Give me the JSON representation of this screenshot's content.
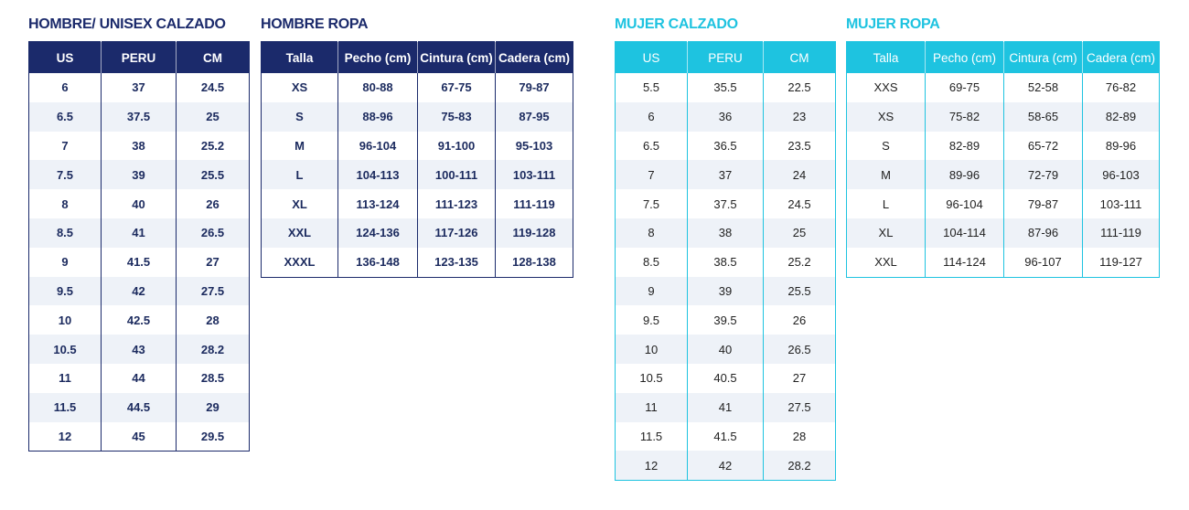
{
  "colors": {
    "navy": "#1b2a6b",
    "cyan": "#1ec3e0",
    "row_alt": "#eef2f8"
  },
  "tables": [
    {
      "title": "HOMBRE/ UNISEX CALZADO",
      "headers": [
        "US",
        "PERU",
        "CM"
      ],
      "rows": [
        [
          "6",
          "37",
          "24.5"
        ],
        [
          "6.5",
          "37.5",
          "25"
        ],
        [
          "7",
          "38",
          "25.2"
        ],
        [
          "7.5",
          "39",
          "25.5"
        ],
        [
          "8",
          "40",
          "26"
        ],
        [
          "8.5",
          "41",
          "26.5"
        ],
        [
          "9",
          "41.5",
          "27"
        ],
        [
          "9.5",
          "42",
          "27.5"
        ],
        [
          "10",
          "42.5",
          "28"
        ],
        [
          "10.5",
          "43",
          "28.2"
        ],
        [
          "11",
          "44",
          "28.5"
        ],
        [
          "11.5",
          "44.5",
          "29"
        ],
        [
          "12",
          "45",
          "29.5"
        ]
      ]
    },
    {
      "title": "HOMBRE ROPA",
      "headers": [
        "Talla",
        "Pecho (cm)",
        "Cintura (cm)",
        "Cadera (cm)"
      ],
      "rows": [
        [
          "XS",
          "80-88",
          "67-75",
          "79-87"
        ],
        [
          "S",
          "88-96",
          "75-83",
          "87-95"
        ],
        [
          "M",
          "96-104",
          "91-100",
          "95-103"
        ],
        [
          "L",
          "104-113",
          "100-111",
          "103-111"
        ],
        [
          "XL",
          "113-124",
          "111-123",
          "111-119"
        ],
        [
          "XXL",
          "124-136",
          "117-126",
          "119-128"
        ],
        [
          "XXXL",
          "136-148",
          "123-135",
          "128-138"
        ]
      ]
    },
    {
      "title": "MUJER CALZADO",
      "headers": [
        "US",
        "PERU",
        "CM"
      ],
      "rows": [
        [
          "5.5",
          "35.5",
          "22.5"
        ],
        [
          "6",
          "36",
          "23"
        ],
        [
          "6.5",
          "36.5",
          "23.5"
        ],
        [
          "7",
          "37",
          "24"
        ],
        [
          "7.5",
          "37.5",
          "24.5"
        ],
        [
          "8",
          "38",
          "25"
        ],
        [
          "8.5",
          "38.5",
          "25.2"
        ],
        [
          "9",
          "39",
          "25.5"
        ],
        [
          "9.5",
          "39.5",
          "26"
        ],
        [
          "10",
          "40",
          "26.5"
        ],
        [
          "10.5",
          "40.5",
          "27"
        ],
        [
          "11",
          "41",
          "27.5"
        ],
        [
          "11.5",
          "41.5",
          "28"
        ],
        [
          "12",
          "42",
          "28.2"
        ]
      ]
    },
    {
      "title": "MUJER ROPA",
      "headers": [
        "Talla",
        "Pecho (cm)",
        "Cintura (cm)",
        "Cadera (cm)"
      ],
      "rows": [
        [
          "XXS",
          "69-75",
          "52-58",
          "76-82"
        ],
        [
          "XS",
          "75-82",
          "58-65",
          "82-89"
        ],
        [
          "S",
          "82-89",
          "65-72",
          "89-96"
        ],
        [
          "M",
          "89-96",
          "72-79",
          "96-103"
        ],
        [
          "L",
          "96-104",
          "79-87",
          "103-111"
        ],
        [
          "XL",
          "104-114",
          "87-96",
          "111-119"
        ],
        [
          "XXL",
          "114-124",
          "96-107",
          "119-127"
        ]
      ]
    }
  ]
}
